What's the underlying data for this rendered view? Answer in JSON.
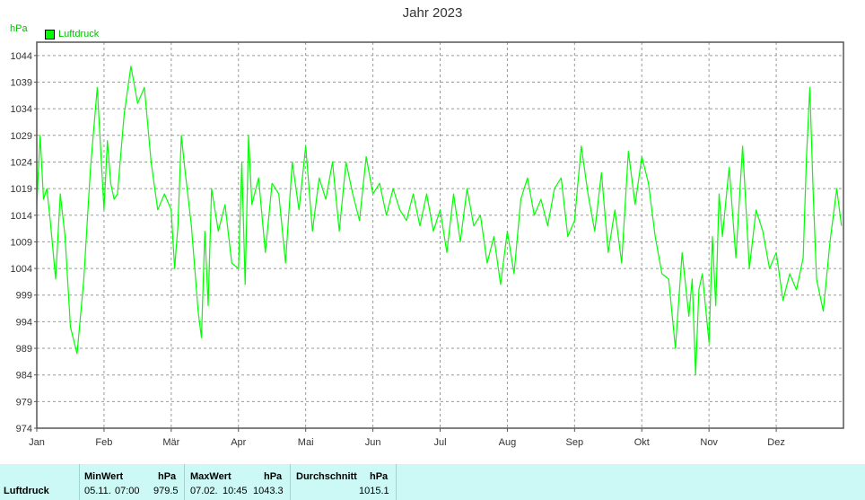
{
  "chart_data": {
    "type": "line",
    "title": "Jahr 2023",
    "ylabel": "hPa",
    "legend": "top-left",
    "grid": true,
    "series": [
      {
        "name": "Luftdruck",
        "color": "#00ff00",
        "x_months": [
          0.0,
          0.05,
          0.1,
          0.15,
          0.2,
          0.28,
          0.35,
          0.42,
          0.5,
          0.6,
          0.7,
          0.8,
          0.9,
          1.0,
          1.05,
          1.1,
          1.15,
          1.2,
          1.3,
          1.4,
          1.5,
          1.6,
          1.7,
          1.8,
          1.9,
          2.0,
          2.05,
          2.1,
          2.15,
          2.2,
          2.3,
          2.4,
          2.45,
          2.5,
          2.55,
          2.6,
          2.7,
          2.8,
          2.9,
          3.0,
          3.05,
          3.1,
          3.15,
          3.2,
          3.3,
          3.4,
          3.5,
          3.6,
          3.7,
          3.8,
          3.9,
          4.0,
          4.1,
          4.2,
          4.3,
          4.4,
          4.5,
          4.6,
          4.7,
          4.8,
          4.9,
          5.0,
          5.1,
          5.2,
          5.3,
          5.4,
          5.5,
          5.6,
          5.7,
          5.8,
          5.9,
          6.0,
          6.1,
          6.2,
          6.3,
          6.4,
          6.5,
          6.6,
          6.7,
          6.8,
          6.9,
          7.0,
          7.1,
          7.2,
          7.3,
          7.4,
          7.5,
          7.6,
          7.7,
          7.8,
          7.9,
          8.0,
          8.1,
          8.2,
          8.3,
          8.4,
          8.5,
          8.6,
          8.7,
          8.8,
          8.9,
          9.0,
          9.1,
          9.2,
          9.3,
          9.4,
          9.5,
          9.6,
          9.7,
          9.75,
          9.8,
          9.85,
          9.9,
          10.0,
          10.05,
          10.1,
          10.15,
          10.2,
          10.3,
          10.4,
          10.5,
          10.6,
          10.7,
          10.8,
          10.9,
          11.0,
          11.1,
          11.2,
          11.3,
          11.4,
          11.45,
          11.5,
          11.55,
          11.6,
          11.7,
          11.8,
          11.9,
          11.97
        ],
        "values": [
          1016,
          1029,
          1017,
          1019,
          1013,
          1002,
          1018,
          1010,
          993,
          988,
          1002,
          1023,
          1038,
          1015,
          1028,
          1020,
          1017,
          1018,
          1033,
          1042,
          1035,
          1038,
          1024,
          1015,
          1018,
          1015,
          1004,
          1012,
          1029,
          1023,
          1012,
          996,
          991,
          1011,
          997,
          1019,
          1011,
          1016,
          1005,
          1004,
          1024,
          1001,
          1029,
          1016,
          1021,
          1007,
          1020,
          1018,
          1005,
          1024,
          1015,
          1027,
          1011,
          1021,
          1017,
          1024,
          1011,
          1024,
          1018,
          1013,
          1025,
          1018,
          1020,
          1014,
          1019,
          1015,
          1013,
          1018,
          1012,
          1018,
          1011,
          1015,
          1007,
          1018,
          1009,
          1019,
          1012,
          1014,
          1005,
          1010,
          1001,
          1011,
          1003,
          1017,
          1021,
          1014,
          1017,
          1012,
          1019,
          1021,
          1010,
          1013,
          1027,
          1018,
          1011,
          1022,
          1007,
          1015,
          1005,
          1026,
          1016,
          1025,
          1020,
          1010,
          1003,
          1002,
          989,
          1007,
          995,
          1002,
          984,
          1000,
          1003,
          990,
          1010,
          997,
          1018,
          1010,
          1023,
          1006,
          1027,
          1004,
          1015,
          1011,
          1004,
          1007,
          998,
          1003,
          1000,
          1006,
          1025,
          1038,
          1018,
          1002,
          996,
          1009,
          1019,
          1012
        ]
      }
    ],
    "x_ticks": [
      "Jan",
      "Feb",
      "Mär",
      "Apr",
      "Mai",
      "Jun",
      "Jul",
      "Aug",
      "Sep",
      "Okt",
      "Nov",
      "Dez"
    ],
    "y_ticks": [
      1044,
      1039,
      1034,
      1029,
      1024,
      1019,
      1014,
      1009,
      1004,
      999,
      994,
      989,
      984,
      979,
      974
    ],
    "ylim": [
      974,
      1046.5
    ]
  },
  "stats": {
    "series_label": "Luftdruck",
    "min_header": "MinWert",
    "min_unit": "hPa",
    "min_date": "05.11.",
    "min_time": "07:00",
    "min_value": "979.5",
    "max_header": "MaxWert",
    "max_unit": "hPa",
    "max_date": "07.02.",
    "max_time": "10:45",
    "max_value": "1043.3",
    "avg_header": "Durchschnitt",
    "avg_unit": "hPa",
    "avg_value": "1015.1"
  }
}
